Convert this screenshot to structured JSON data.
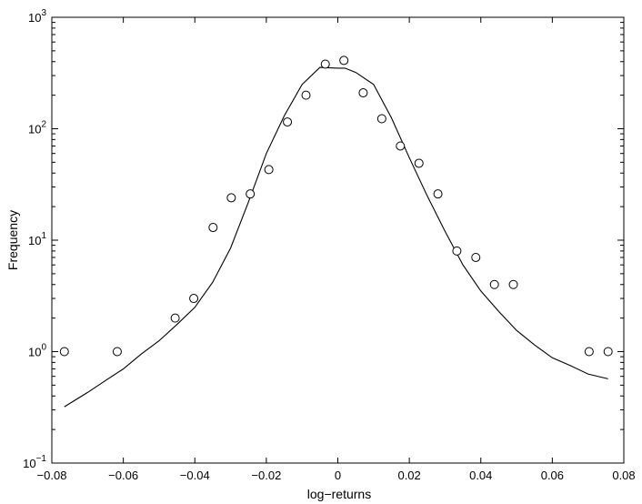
{
  "chart_data": {
    "type": "scatter",
    "title": "",
    "xlabel": "log−returns",
    "ylabel": "Frequency",
    "xlim": [
      -0.08,
      0.08
    ],
    "ylim": [
      0.1,
      1000
    ],
    "yscale": "log",
    "grid": false,
    "x_ticks": [
      {
        "value": -0.08,
        "label": "−0.08"
      },
      {
        "value": -0.06,
        "label": "−0.06"
      },
      {
        "value": -0.04,
        "label": "−0.04"
      },
      {
        "value": -0.02,
        "label": "−0.02"
      },
      {
        "value": 0,
        "label": "0"
      },
      {
        "value": 0.02,
        "label": "0.02"
      },
      {
        "value": 0.04,
        "label": "0.04"
      },
      {
        "value": 0.06,
        "label": "0.06"
      },
      {
        "value": 0.08,
        "label": "0.08"
      }
    ],
    "y_ticks": [
      {
        "value": 0.1,
        "base": "10",
        "exp": "−1"
      },
      {
        "value": 1,
        "base": "10",
        "exp": "0"
      },
      {
        "value": 10,
        "base": "10",
        "exp": "1"
      },
      {
        "value": 100,
        "base": "10",
        "exp": "2"
      },
      {
        "value": 1000,
        "base": "10",
        "exp": "3"
      }
    ],
    "series": [
      {
        "marker": "open-circle",
        "x": [
          -0.0765,
          -0.0617,
          -0.0455,
          -0.0403,
          -0.0349,
          -0.0298,
          -0.0245,
          -0.0193,
          -0.0141,
          -0.0089,
          -0.0035,
          0.0017,
          0.0071,
          0.0123,
          0.0175,
          0.0227,
          0.028,
          0.0333,
          0.0386,
          0.0438,
          0.0491,
          0.0703,
          0.0756
        ],
        "y": [
          1,
          1,
          2,
          3,
          13,
          24,
          26,
          43,
          115,
          200,
          380,
          410,
          210,
          123,
          70,
          49,
          26,
          8,
          7,
          4,
          4,
          1,
          1
        ]
      },
      {
        "marker": "line",
        "x": [
          -0.0765,
          -0.07,
          -0.065,
          -0.06,
          -0.055,
          -0.05,
          -0.045,
          -0.04,
          -0.035,
          -0.03,
          -0.025,
          -0.02,
          -0.015,
          -0.01,
          -0.005,
          0,
          0.002,
          0.005,
          0.01,
          0.015,
          0.02,
          0.025,
          0.03,
          0.035,
          0.04,
          0.045,
          0.05,
          0.055,
          0.06,
          0.065,
          0.07,
          0.0756
        ],
        "y": [
          0.32,
          0.43,
          0.55,
          0.7,
          0.95,
          1.25,
          1.75,
          2.5,
          4.2,
          8.5,
          22,
          60,
          130,
          250,
          355,
          350,
          350,
          320,
          250,
          125,
          55,
          25,
          12,
          6,
          3.5,
          2.3,
          1.55,
          1.15,
          0.88,
          0.75,
          0.63,
          0.57
        ]
      }
    ]
  }
}
